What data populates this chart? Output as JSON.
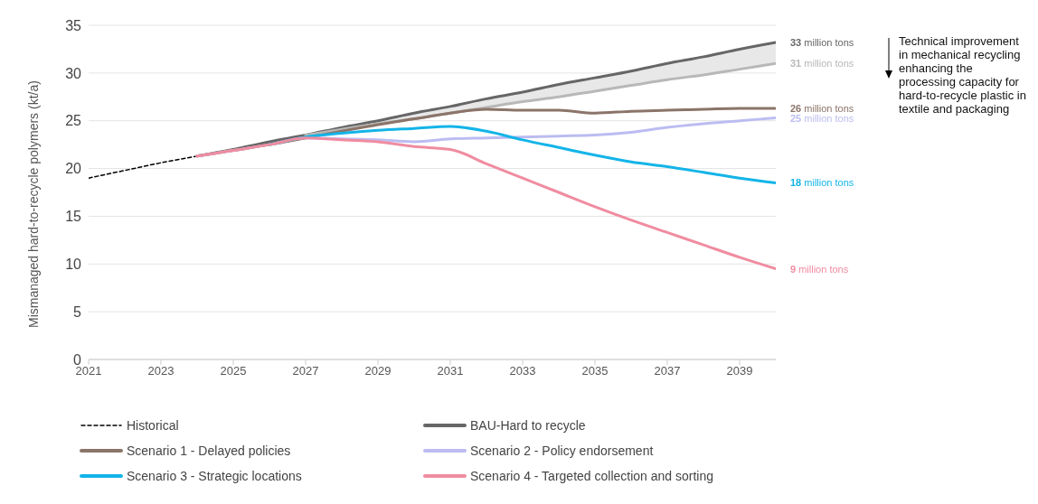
{
  "chart_data": {
    "type": "line",
    "ylabel": "Mismanaged  hard-to-recycle polymers (kt/a)",
    "x": [
      2024,
      2025,
      2026,
      2027,
      2028,
      2029,
      2030,
      2031,
      2032,
      2033,
      2034,
      2035,
      2036,
      2037,
      2038,
      2039,
      2040
    ],
    "xlim": [
      2021,
      2040
    ],
    "xticks": [
      2021,
      2023,
      2025,
      2027,
      2029,
      2031,
      2033,
      2035,
      2037,
      2039
    ],
    "ylim": [
      0,
      35
    ],
    "yticks": [
      0,
      5,
      10,
      15,
      20,
      25,
      30,
      35
    ],
    "grid": "y",
    "legend": "bottom",
    "marker": "none",
    "series": [
      {
        "name": "Historical",
        "color": "#000000",
        "line_style": "dashed",
        "x": [
          2021,
          2022,
          2023,
          2024
        ],
        "values": [
          19,
          19.8,
          20.6,
          21.3
        ]
      },
      {
        "name": "BAU-Hard to recycle",
        "color": "#666666",
        "values": [
          21.3,
          22,
          22.8,
          23.5,
          24.3,
          25,
          25.8,
          26.5,
          27.3,
          28,
          28.8,
          29.5,
          30.2,
          31,
          31.7,
          32.5,
          33.2
        ],
        "lower": [
          null,
          null,
          null,
          23.5,
          24.1,
          24.7,
          25.2,
          25.8,
          26.4,
          27,
          27.5,
          28.1,
          28.7,
          29.3,
          29.8,
          30.4,
          31
        ],
        "upper": [
          null,
          null,
          null,
          23.5,
          24.3,
          25,
          25.8,
          26.5,
          27.3,
          28,
          28.8,
          29.5,
          30.2,
          31,
          31.7,
          32.5,
          33.2
        ],
        "value_labels": [
          null,
          null,
          null,
          null,
          null,
          null,
          null,
          null,
          null,
          null,
          null,
          null,
          null,
          null,
          null,
          null,
          "33 million tons"
        ]
      },
      {
        "color": "#b8b8b8",
        "x": [
          2027,
          2028,
          2029,
          2030,
          2031,
          2032,
          2033,
          2034,
          2035,
          2036,
          2037,
          2038,
          2039,
          2040
        ],
        "values": [
          23.5,
          24.1,
          24.7,
          25.2,
          25.8,
          26.4,
          27,
          27.5,
          28.1,
          28.7,
          29.3,
          29.8,
          30.4,
          31
        ],
        "value_labels": [
          null,
          null,
          null,
          null,
          null,
          null,
          null,
          null,
          null,
          null,
          null,
          null,
          null,
          "31 million tons"
        ]
      },
      {
        "name": "Scenario 1 - Delayed policies",
        "color": "#8b7469",
        "values": [
          21.3,
          21.9,
          22.5,
          23.2,
          23.9,
          24.6,
          25.2,
          25.8,
          26.2,
          26.1,
          26.1,
          25.8,
          26,
          26.1,
          26.2,
          26.3,
          26.3
        ],
        "value_labels": [
          null,
          null,
          null,
          null,
          null,
          null,
          null,
          null,
          null,
          null,
          null,
          null,
          null,
          null,
          null,
          null,
          "26 million tons"
        ]
      },
      {
        "name": "Scenario 2 - Policy endorsement",
        "color": "#bcbcf2",
        "values": [
          21.3,
          21.9,
          22.5,
          23.2,
          23.1,
          23,
          22.8,
          23.1,
          23.2,
          23.3,
          23.4,
          23.5,
          23.8,
          24.3,
          24.7,
          25,
          25.3
        ],
        "value_labels": [
          null,
          null,
          null,
          null,
          null,
          null,
          null,
          null,
          null,
          null,
          null,
          null,
          null,
          null,
          null,
          null,
          "25 million tons"
        ]
      },
      {
        "name": "Scenario 3 - Strategic locations",
        "color": "#14b4e8",
        "values": [
          null,
          null,
          22.5,
          23.3,
          23.7,
          24,
          24.2,
          24.4,
          23.9,
          23,
          22.2,
          21.4,
          20.7,
          20.2,
          19.6,
          19,
          18.5
        ],
        "value_labels": [
          null,
          null,
          null,
          null,
          null,
          null,
          null,
          null,
          null,
          null,
          null,
          null,
          null,
          null,
          null,
          null,
          "18 million tons"
        ]
      },
      {
        "name": "Scenario 4 - Targeted collection and sorting",
        "color": "#f08ca0",
        "values": [
          21.3,
          21.9,
          22.5,
          23.2,
          23,
          22.8,
          22.3,
          22,
          20.5,
          19,
          17.5,
          16,
          14.6,
          13.3,
          12,
          10.7,
          9.5
        ],
        "value_labels": [
          null,
          null,
          null,
          null,
          null,
          null,
          null,
          null,
          null,
          null,
          null,
          null,
          null,
          null,
          null,
          null,
          "9 million tons"
        ]
      }
    ],
    "annotations": [
      "Technical improvement in mechanical recycling enhancing the processing capacity for hard-to-recycle plastic in textile and packaging"
    ]
  }
}
